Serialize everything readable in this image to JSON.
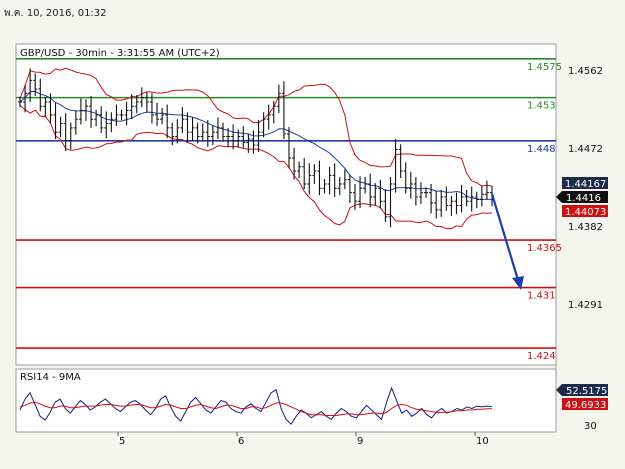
{
  "header": {
    "datetime": "พ.ค. 10, 2016, 01:32"
  },
  "chart": {
    "title": "GBP/USD - 30min - 3:31:55 AM (UTC+2)",
    "price_axis": [
      "1.4562",
      "1.4472",
      "1.4382",
      "1.4291"
    ],
    "badges": {
      "ask": "1.44167",
      "last": "1.4416",
      "bid": "1.44073"
    },
    "levels": [
      {
        "label": "1.4575",
        "color": "#2a8a2a"
      },
      {
        "label": "1.453",
        "color": "#2a8a2a"
      },
      {
        "label": "1.448",
        "color": "#1e3faa"
      },
      {
        "label": "1.4365",
        "color": "#d01010"
      },
      {
        "label": "1.431",
        "color": "#d01010"
      },
      {
        "label": "1.424",
        "color": "#d01010"
      }
    ],
    "date_ticks": [
      "5",
      "6",
      "9",
      "10"
    ]
  },
  "rsi": {
    "title": "RSI14 - 9MA",
    "value": "52.5175",
    "ma_value": "49.6933",
    "axis_label": "30"
  },
  "chart_data": {
    "type": "line",
    "title": "GBP/USD - 30min - 3:31:55 AM (UTC+2)",
    "xlabel": "",
    "ylabel": "",
    "x_ticks": [
      "5",
      "6",
      "9",
      "10"
    ],
    "ylim": [
      1.419,
      1.46
    ],
    "series": [
      {
        "values": [
          1.4525,
          1.4535,
          1.455,
          1.454,
          1.452,
          1.4525,
          1.451,
          1.449,
          1.45,
          1.448,
          1.4495,
          1.4505,
          1.4515,
          1.452,
          1.4505,
          1.451,
          1.4495,
          1.45,
          1.4505,
          1.451,
          1.451,
          1.4515,
          1.452,
          1.4525,
          1.453,
          1.4525,
          1.451,
          1.4505,
          1.451,
          1.4495,
          1.4485,
          1.4495,
          1.4505,
          1.449,
          1.4495,
          1.4485,
          1.449,
          1.4485,
          1.449,
          1.4495,
          1.4485,
          1.4485,
          1.448,
          1.4485,
          1.4478,
          1.4482,
          1.4475,
          1.449,
          1.4505,
          1.451,
          1.452,
          1.4535,
          1.4488,
          1.446,
          1.4445,
          1.445,
          1.443,
          1.444,
          1.4445,
          1.4425,
          1.443,
          1.444,
          1.4425,
          1.443,
          1.4435,
          1.442,
          1.441,
          1.4425,
          1.443,
          1.4415,
          1.4425,
          1.441,
          1.4392,
          1.443,
          1.447,
          1.4445,
          1.4425,
          1.443,
          1.4415,
          1.442,
          1.442,
          1.4408,
          1.44,
          1.4415,
          1.4405,
          1.441,
          1.4405,
          1.4415,
          1.441,
          1.4415,
          1.4412,
          1.4418,
          1.442,
          1.4416
        ]
      }
    ],
    "horizontal_levels": [
      1.4575,
      1.453,
      1.448,
      1.4365,
      1.431,
      1.424
    ],
    "last_price": 1.4416,
    "ask": 1.44167,
    "bid": 1.44073,
    "rsi_series": [
      {
        "name": "RSI14",
        "last": 52.5175,
        "values": [
          48,
          62,
          70,
          55,
          40,
          35,
          45,
          58,
          62,
          50,
          44,
          52,
          60,
          55,
          48,
          52,
          58,
          62,
          56,
          50,
          46,
          52,
          58,
          60,
          55,
          48,
          42,
          50,
          62,
          66,
          52,
          40,
          34,
          46,
          58,
          64,
          56,
          48,
          44,
          52,
          60,
          58,
          50,
          46,
          44,
          52,
          56,
          50,
          46,
          58,
          70,
          74,
          50,
          36,
          30,
          40,
          48,
          44,
          38,
          42,
          46,
          40,
          36,
          44,
          50,
          46,
          40,
          38,
          46,
          54,
          48,
          42,
          36,
          58,
          76,
          60,
          44,
          48,
          40,
          44,
          50,
          42,
          38,
          46,
          50,
          44,
          46,
          50,
          48,
          52,
          50,
          53,
          52,
          53,
          52.5
        ]
      },
      {
        "name": "9MA",
        "last": 49.6933,
        "values": [
          52,
          54,
          57,
          58,
          56,
          53,
          51,
          51,
          53,
          53,
          51,
          51,
          52,
          53,
          53,
          53,
          54,
          55,
          55,
          54,
          53,
          53,
          54,
          55,
          55,
          53,
          51,
          51,
          53,
          55,
          54,
          52,
          50,
          50,
          52,
          54,
          55,
          53,
          51,
          50,
          52,
          54,
          54,
          52,
          50,
          50,
          52,
          52,
          50,
          51,
          54,
          57,
          57,
          55,
          52,
          49,
          46,
          44,
          42,
          42,
          42,
          41,
          41,
          41,
          42,
          43,
          43,
          42,
          42,
          43,
          44,
          44,
          43,
          45,
          50,
          54,
          55,
          54,
          51,
          49,
          48,
          47,
          46,
          45,
          45,
          45,
          46,
          47,
          47,
          48,
          48,
          49,
          49,
          49.5,
          49.6933
        ]
      }
    ]
  }
}
